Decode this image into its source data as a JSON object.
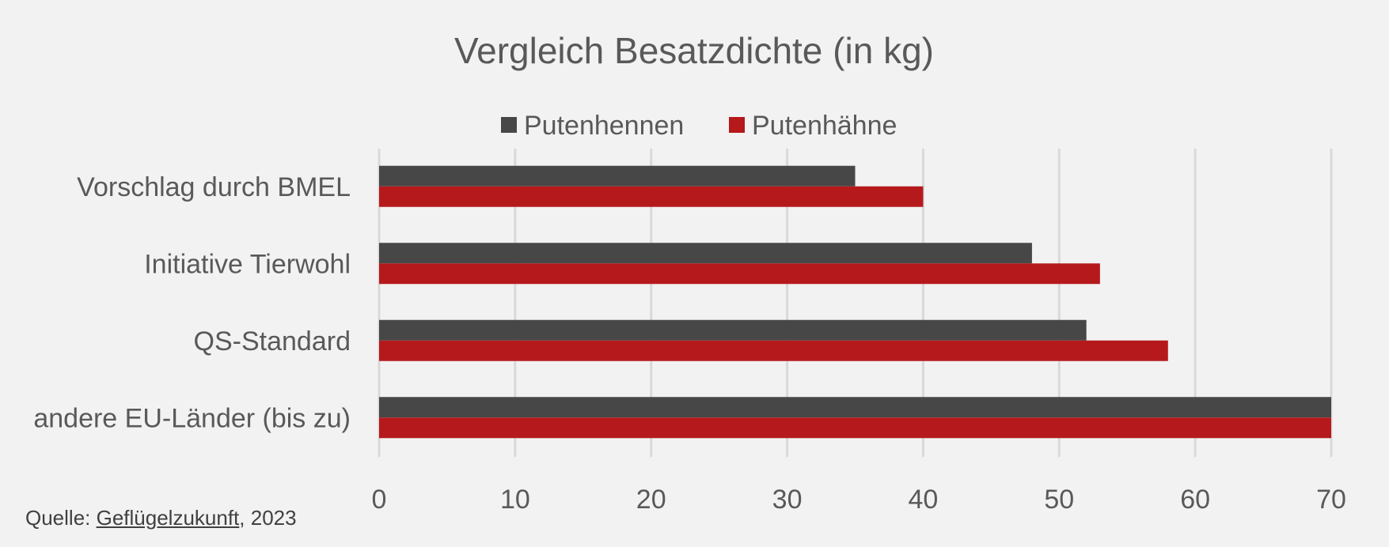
{
  "chart_data": {
    "type": "bar",
    "orientation": "horizontal",
    "title": "Vergleich Besatzdichte (in kg)",
    "categories": [
      "Vorschlag durch BMEL",
      "Initiative Tierwohl",
      "QS-Standard",
      "andere EU-Länder (bis zu)"
    ],
    "series": [
      {
        "name": "Putenhennen",
        "color": "#474747",
        "values": [
          35,
          48,
          52,
          70
        ]
      },
      {
        "name": "Putenhähne",
        "color": "#b5191c",
        "values": [
          40,
          53,
          58,
          70
        ]
      }
    ],
    "xlim": [
      0,
      70
    ],
    "xticks": [
      "0",
      "10",
      "20",
      "30",
      "40",
      "50",
      "60",
      "70"
    ],
    "grid": true,
    "legend_position": "top"
  },
  "source": {
    "prefix": "Quelle: ",
    "link_text": "Geflügelzukunft",
    "suffix": ", 2023"
  }
}
